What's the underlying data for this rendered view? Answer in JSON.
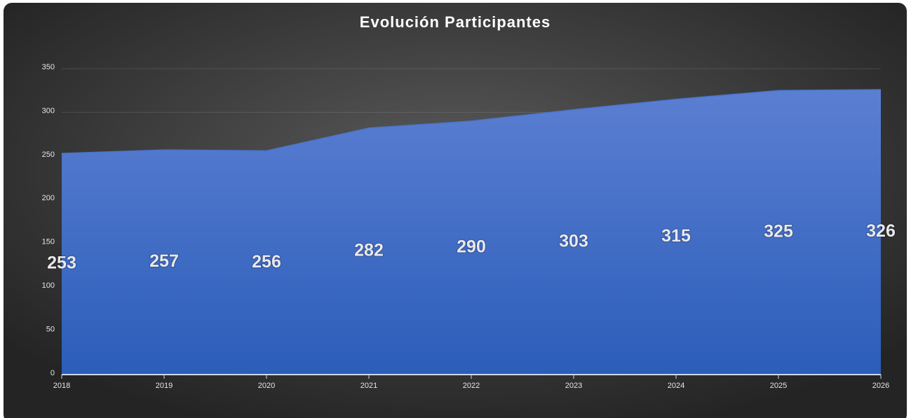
{
  "chart_data": {
    "type": "area",
    "title": "Evolución Participantes",
    "categories": [
      "2018",
      "2019",
      "2020",
      "2021",
      "2022",
      "2023",
      "2024",
      "2025",
      "2026"
    ],
    "series": [
      {
        "name": "Participantes",
        "color": "#4a74cc",
        "values": [
          253,
          257,
          256,
          282,
          290,
          303,
          315,
          325,
          326
        ]
      }
    ],
    "ylim": [
      0,
      350
    ],
    "yticks": [
      0,
      50,
      100,
      150,
      200,
      250,
      300,
      350
    ],
    "grid": true
  }
}
